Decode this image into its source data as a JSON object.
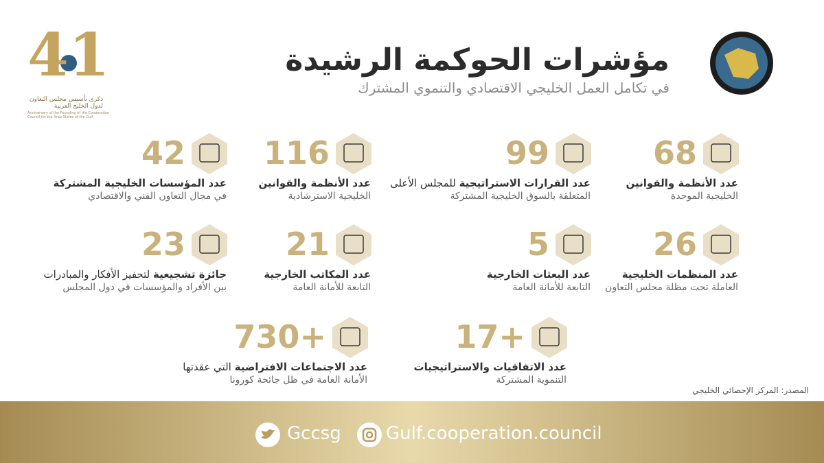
{
  "header": {
    "title": "مؤشرات الحوكمة الرشيدة",
    "subtitle": "في تكامل العمل الخليجي الاقتصادي والتنموي المشترك"
  },
  "logo": {
    "number": "41",
    "arabic": "ذكرى تأسيس مجلس التعاون لدول الخليج العربية",
    "english": "Anniversary of the Founding of the Cooperation Council for the Arab States of the Gulf"
  },
  "items": [
    {
      "number": "68",
      "title": "عدد الأنظمة والقوانين",
      "detail": "الخليجية الموحدة"
    },
    {
      "number": "99",
      "title": "عدد القرارات الاستراتيجية",
      "note": "للمجلس الأعلى",
      "detail": "المتعلقة بالسوق الخليجية المشتركة"
    },
    {
      "number": "116",
      "title": "عدد الأنظمة والقوانين",
      "detail": "الخليجية الاسترشادية"
    },
    {
      "number": "42",
      "title": "عدد المؤسسات الخليجية المشتركة",
      "detail": "في مجال التعاون الفني والاقتصادي"
    },
    {
      "number": "26",
      "title": "عدد المنظمات الخليجية",
      "detail": "العاملة تحت مظلة مجلس التعاون"
    },
    {
      "number": "5",
      "title": "عدد البعثات الخارجية",
      "detail": "التابعة للأمانة العامة"
    },
    {
      "number": "21",
      "title": "عدد المكاتب الخارجية",
      "detail": "التابعة للأمانة العامة"
    },
    {
      "number": "23",
      "title": "جائزة تشجيعية",
      "note": "لتحفيز الأفكار والمبادرات",
      "detail": "بين الأفراد والمؤسسات في دول المجلس"
    },
    {
      "number": "+17",
      "title": "عدد الاتفاقيات والاستراتيجيات",
      "detail": "التنموية المشتركة"
    },
    {
      "number": "+730",
      "title": "عدد الاجتماعات الافتراضية",
      "note": "التي عقدتها",
      "detail": "الأمانة العامة في ظل جائحة كورونا"
    }
  ],
  "source": "المصدر: المركز الإحصائي الخليجي",
  "footer": {
    "twitter": "Gccsg",
    "instagram": "Gulf.cooperation.council"
  }
}
